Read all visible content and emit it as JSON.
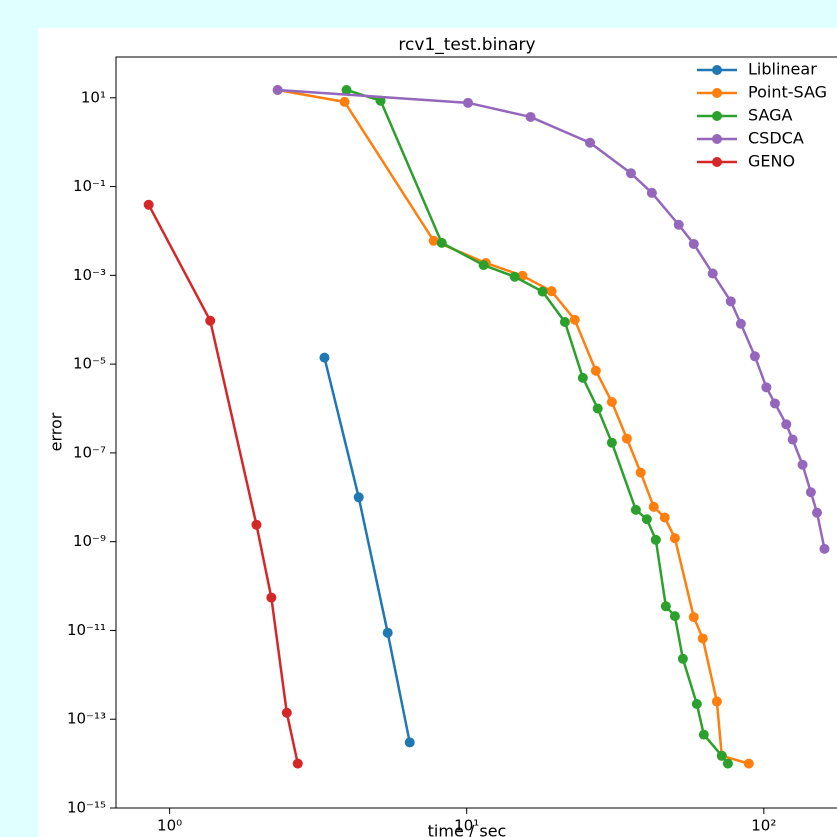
{
  "chart_data": {
    "type": "line",
    "title": "rcv1_test.binary",
    "xlabel": "time / sec",
    "ylabel": "error",
    "xscale": "log",
    "yscale": "log",
    "xlim": [
      0.66,
      195
    ],
    "ylim": [
      1e-15,
      83
    ],
    "xticks": [
      {
        "value": 1,
        "label": "10⁰"
      },
      {
        "value": 10,
        "label": "10¹"
      },
      {
        "value": 100,
        "label": "10²"
      }
    ],
    "yticks": [
      {
        "value": 10,
        "label": "10¹"
      },
      {
        "value": 0.1,
        "label": "10⁻¹"
      },
      {
        "value": 0.001,
        "label": "10⁻³"
      },
      {
        "value": 1e-05,
        "label": "10⁻⁵"
      },
      {
        "value": 1e-07,
        "label": "10⁻⁷"
      },
      {
        "value": 1e-09,
        "label": "10⁻⁹"
      },
      {
        "value": 1e-11,
        "label": "10⁻¹¹"
      },
      {
        "value": 1e-13,
        "label": "10⁻¹³"
      },
      {
        "value": 1e-15,
        "label": "10⁻¹⁵"
      }
    ],
    "legend": "upper right",
    "series": [
      {
        "name": "Liblinear",
        "color": "#1f77b4",
        "x": [
          3.32,
          4.33,
          5.42,
          6.43
        ],
        "values": [
          1.4e-05,
          1e-08,
          8.9e-12,
          3e-14
        ]
      },
      {
        "name": "Point-SAG",
        "color": "#ff7f0e",
        "x": [
          2.31,
          3.88,
          7.74,
          11.6,
          15.4,
          19.3,
          23.1,
          27.2,
          30.8,
          34.6,
          38.5,
          42.6,
          46.4,
          50.2,
          58.1,
          62.3,
          69.5,
          72.2,
          89.0
        ],
        "values": [
          15,
          8.1,
          0.006,
          0.0019,
          0.00098,
          0.00044,
          0.0001,
          7.1e-06,
          1.4e-06,
          2.1e-07,
          3.6e-08,
          6.1e-09,
          3.5e-09,
          1.2e-09,
          2e-11,
          6.6e-12,
          2.5e-13,
          1.5e-14,
          1e-14
        ]
      },
      {
        "name": "SAGA",
        "color": "#2ca02c",
        "x": [
          3.94,
          5.13,
          8.24,
          11.4,
          14.5,
          18.0,
          21.4,
          24.6,
          27.6,
          30.8,
          37.1,
          40.4,
          43.3,
          46.8,
          50.2,
          53.4,
          59.5,
          62.8,
          72.2,
          75.7
        ],
        "values": [
          15,
          8.6,
          0.0054,
          0.0017,
          0.00093,
          0.00043,
          8.9e-05,
          4.9e-06,
          1e-06,
          1.7e-07,
          5.2e-09,
          3.2e-09,
          1.1e-09,
          3.5e-11,
          2.1e-11,
          2.3e-12,
          2.2e-13,
          4.5e-14,
          1.5e-14,
          1e-14
        ]
      },
      {
        "name": "CSDCA",
        "color": "#9467bd",
        "x": [
          2.31,
          10.1,
          16.4,
          26.0,
          35.7,
          42.0,
          51.7,
          58.1,
          67.3,
          77.4,
          83.7,
          93.3,
          102,
          109,
          119,
          125,
          135,
          144,
          151,
          160
        ],
        "values": [
          15,
          7.7,
          3.7,
          0.97,
          0.2,
          0.072,
          0.0138,
          0.0051,
          0.0011,
          0.00026,
          8.1e-05,
          1.5e-05,
          3e-06,
          1.3e-06,
          4.4e-07,
          2e-07,
          5.4e-08,
          1.3e-08,
          4.5e-09,
          6.9e-10
        ]
      },
      {
        "name": "GENO",
        "color": "#d62728",
        "x": [
          0.85,
          1.37,
          1.96,
          2.2,
          2.48,
          2.7
        ],
        "values": [
          0.039,
          9.5e-05,
          2.4e-09,
          5.5e-11,
          1.4e-13,
          1e-14
        ]
      }
    ]
  }
}
